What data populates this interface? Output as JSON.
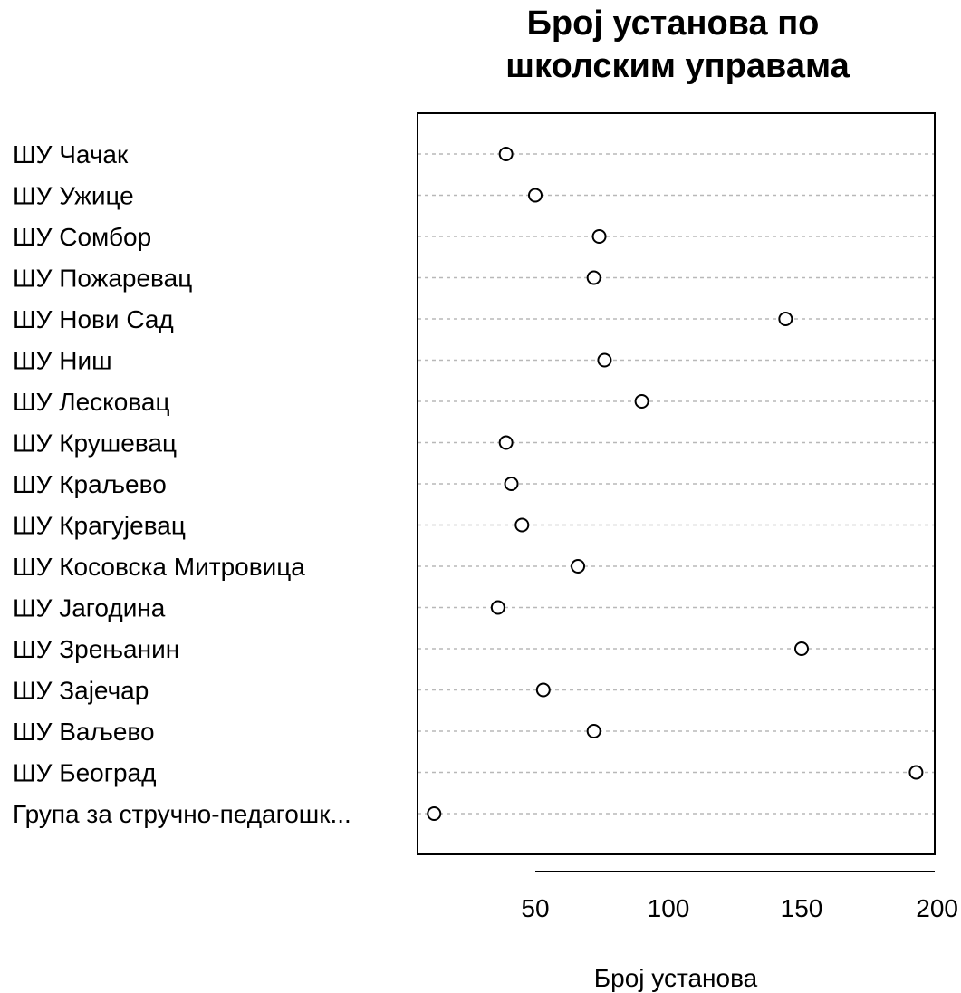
{
  "chart_data": {
    "type": "scatter",
    "title_lines": [
      "Број установа по",
      "школским управама"
    ],
    "xlabel": "Број установа",
    "ylabel": "",
    "xlim": [
      5,
      200
    ],
    "xticks": [
      50,
      100,
      150,
      200
    ],
    "grid": true,
    "categories": [
      "ШУ Чачак",
      "ШУ Ужице",
      "ШУ Сомбор",
      "ШУ Пожаревац",
      "ШУ Нови Сад",
      "ШУ Ниш",
      "ШУ Лесковац",
      "ШУ Крушевац",
      "ШУ Краљево",
      "ШУ Крагујевац",
      "ШУ Косовска Митровица",
      "ШУ Јагодина",
      "ШУ Зрењанин",
      "ШУ Зајечар",
      "ШУ Ваљево",
      "ШУ Београд",
      "Група за стручно-педагошк..."
    ],
    "values": [
      39,
      50,
      74,
      72,
      144,
      76,
      90,
      39,
      41,
      45,
      66,
      36,
      150,
      53,
      72,
      193,
      12
    ]
  }
}
